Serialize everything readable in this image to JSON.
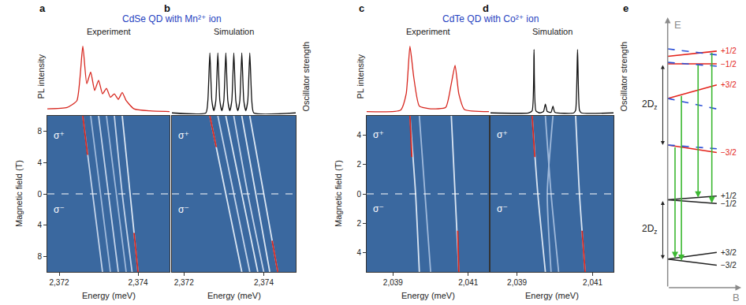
{
  "headings": [
    {
      "text": "CdSe QD with Mn²⁺ ion",
      "panels": [
        "a",
        "b"
      ]
    },
    {
      "text": "CdTe QD with Co²⁺ ion",
      "panels": [
        "c",
        "d"
      ]
    }
  ],
  "chart_data": [
    {
      "panel": "a",
      "type": "line",
      "title": "Experiment",
      "spectrum": {
        "ylabel": "PL intensity",
        "color": "#d7261e",
        "tick_labels": false,
        "xlim": [
          2371.7,
          2374.8
        ],
        "ylim": [
          0,
          1.1
        ],
        "x": [
          2371.7,
          2372.2,
          2372.45,
          2372.6,
          2372.7,
          2372.8,
          2372.9,
          2373.0,
          2373.1,
          2373.2,
          2373.3,
          2373.4,
          2373.5,
          2373.6,
          2373.7,
          2373.9,
          2374.3,
          2374.8
        ],
        "values": [
          0.08,
          0.1,
          0.2,
          1.0,
          0.45,
          0.62,
          0.35,
          0.5,
          0.3,
          0.38,
          0.25,
          0.3,
          0.22,
          0.32,
          0.2,
          0.08,
          0.05,
          0.04
        ]
      },
      "map": {
        "xlabel": "Energy (meV)",
        "ylabel": "Magnetic field (T)",
        "xlim": [
          2371.7,
          2374.8
        ],
        "xticks": [
          {
            "value": 2372,
            "label": "2,372"
          },
          {
            "value": 2374,
            "label": "2,374"
          }
        ],
        "ylim": [
          -10,
          10
        ],
        "yticks": [
          {
            "value": -8,
            "label": "8"
          },
          {
            "value": -4,
            "label": "4"
          },
          0,
          4,
          8
        ],
        "hline": 0,
        "annotations": [
          {
            "text": "σ⁺",
            "y": 7.5
          },
          {
            "text": "σ⁻",
            "y": -2
          }
        ],
        "series": [
          {
            "color": "#c4d4ea",
            "x": [
              2372.6,
              2372.85,
              2373.1
            ],
            "y": [
              10,
              0,
              -10
            ]
          },
          {
            "color": "#9fb9db",
            "x": [
              2372.8,
              2373.05,
              2373.3
            ],
            "y": [
              10,
              0,
              -10
            ]
          },
          {
            "color": "#c4d4ea",
            "x": [
              2373.0,
              2373.25,
              2373.5
            ],
            "y": [
              10,
              0,
              -10
            ]
          },
          {
            "color": "#9fb9db",
            "x": [
              2373.2,
              2373.45,
              2373.7
            ],
            "y": [
              10,
              0,
              -10
            ]
          },
          {
            "color": "#c4d4ea",
            "x": [
              2373.4,
              2373.6,
              2373.85
            ],
            "y": [
              10,
              0,
              -10
            ]
          },
          {
            "color": "#dbe6f3",
            "x": [
              2373.6,
              2373.8,
              2374.0
            ],
            "y": [
              10,
              0,
              -10
            ]
          },
          {
            "color": "#d7261e",
            "x": [
              2372.6,
              2372.72
            ],
            "y": [
              10,
              5
            ]
          },
          {
            "color": "#d7261e",
            "x": [
              2373.9,
              2374.0
            ],
            "y": [
              -5,
              -10
            ]
          }
        ]
      }
    },
    {
      "panel": "b",
      "type": "line",
      "title": "Simulation",
      "spectrum": {
        "ylabel": "Oscillator strength",
        "color": "#111111",
        "tick_labels": false,
        "xlim": [
          2371.7,
          2374.8
        ],
        "ylim": [
          0,
          1.1
        ],
        "x": [
          2371.7,
          2372.55,
          2372.6,
          2372.65,
          2372.7,
          2372.75,
          2372.8,
          2372.85,
          2372.9,
          2372.95,
          2373.0,
          2373.05,
          2373.1,
          2373.15,
          2373.2,
          2373.25,
          2373.3,
          2373.35,
          2373.4,
          2373.45,
          2373.5,
          2373.55,
          2373.6,
          2373.65,
          2373.7,
          2373.75,
          2374.8
        ],
        "values": [
          0.02,
          0.02,
          0.2,
          0.9,
          0.2,
          0.05,
          0.2,
          0.9,
          0.2,
          0.05,
          0.2,
          0.9,
          0.2,
          0.05,
          0.2,
          0.9,
          0.2,
          0.05,
          0.2,
          0.9,
          0.2,
          0.05,
          0.2,
          0.9,
          0.2,
          0.02,
          0.02
        ]
      },
      "map": {
        "xlabel": "Energy (meV)",
        "tick_labels": "x",
        "xlim": [
          2371.7,
          2374.8
        ],
        "xticks": [
          {
            "value": 2372,
            "label": "2,372"
          },
          {
            "value": 2374,
            "label": "2,374"
          }
        ],
        "ylim": [
          -10,
          10
        ],
        "hline": 0,
        "annotations": [
          {
            "text": "σ⁺",
            "y": 7.5
          },
          {
            "text": "σ⁻",
            "y": -2
          }
        ],
        "series": [
          {
            "color": "#dbe6f3",
            "x": [
              2372.65,
              2373.05,
              2373.45
            ],
            "y": [
              10,
              0,
              -10
            ]
          },
          {
            "color": "#c4d4ea",
            "x": [
              2372.85,
              2373.25,
              2373.65
            ],
            "y": [
              10,
              0,
              -10
            ]
          },
          {
            "color": "#dbe6f3",
            "x": [
              2373.05,
              2373.45,
              2373.85
            ],
            "y": [
              10,
              0,
              -10
            ]
          },
          {
            "color": "#c4d4ea",
            "x": [
              2373.25,
              2373.6,
              2374.0
            ],
            "y": [
              10,
              0,
              -10
            ]
          },
          {
            "color": "#dbe6f3",
            "x": [
              2373.45,
              2373.8,
              2374.15
            ],
            "y": [
              10,
              0,
              -10
            ]
          },
          {
            "color": "#dbe6f3",
            "x": [
              2373.65,
              2374.0,
              2374.35
            ],
            "y": [
              10,
              0,
              -10
            ]
          },
          {
            "color": "#d7261e",
            "x": [
              2372.65,
              2372.81
            ],
            "y": [
              10,
              6
            ]
          },
          {
            "color": "#d7261e",
            "x": [
              2374.21,
              2374.35
            ],
            "y": [
              -6,
              -10
            ]
          }
        ]
      }
    },
    {
      "panel": "c",
      "type": "line",
      "title": "Experiment",
      "spectrum": {
        "ylabel": "PL intensity",
        "color": "#d7261e",
        "tick_labels": false,
        "xlim": [
          2038.3,
          2041.55
        ],
        "ylim": [
          0,
          1.1
        ],
        "x": [
          2038.3,
          2039.2,
          2039.35,
          2039.45,
          2039.55,
          2039.7,
          2040.0,
          2040.4,
          2040.55,
          2040.65,
          2040.75,
          2040.9,
          2041.55
        ],
        "values": [
          0.04,
          0.06,
          0.3,
          1.0,
          0.55,
          0.12,
          0.08,
          0.1,
          0.45,
          0.72,
          0.3,
          0.07,
          0.04
        ]
      },
      "map": {
        "xlabel": "Energy (meV)",
        "ylabel": "Magnetic field (T)",
        "xlim": [
          2038.3,
          2041.55
        ],
        "xticks": [
          {
            "value": 2039,
            "label": "2,039"
          },
          {
            "value": 2041,
            "label": "2,041"
          }
        ],
        "ylim": [
          -5.3,
          5.3
        ],
        "yticks": [
          {
            "value": -4,
            "label": "4"
          },
          {
            "value": -2,
            "label": "2"
          },
          0,
          2,
          4
        ],
        "hline": 0,
        "annotations": [
          {
            "text": "σ⁺",
            "y": 4
          },
          {
            "text": "σ⁻",
            "y": -1
          }
        ],
        "series": [
          {
            "color": "#dbe6f3",
            "x": [
              2039.45,
              2039.6,
              2039.7
            ],
            "y": [
              5.3,
              0,
              -5.3
            ]
          },
          {
            "color": "#dbe6f3",
            "x": [
              2040.55,
              2040.65,
              2040.75
            ],
            "y": [
              5.3,
              0,
              -5.3
            ]
          },
          {
            "color": "#9fb9db",
            "x": [
              2039.7,
              2039.85,
              2040.0
            ],
            "y": [
              5.3,
              0,
              -5.3
            ]
          },
          {
            "color": "#d7261e",
            "x": [
              2039.45,
              2039.5
            ],
            "y": [
              5.3,
              2.5
            ]
          },
          {
            "color": "#d7261e",
            "x": [
              2040.72,
              2040.75
            ],
            "y": [
              -2.5,
              -5.3
            ]
          }
        ]
      }
    },
    {
      "panel": "d",
      "type": "line",
      "title": "Simulation",
      "spectrum": {
        "ylabel": "Oscillator strength",
        "color": "#111111",
        "tick_labels": false,
        "xlim": [
          2038.3,
          2041.55
        ],
        "ylim": [
          0,
          1.1
        ],
        "x": [
          2038.3,
          2039.3,
          2039.4,
          2039.45,
          2039.5,
          2039.6,
          2039.7,
          2039.75,
          2039.8,
          2039.9,
          2039.95,
          2040.0,
          2040.5,
          2040.55,
          2040.6,
          2040.65,
          2040.7,
          2041.55
        ],
        "values": [
          0.02,
          0.02,
          0.05,
          0.95,
          0.05,
          0.02,
          0.04,
          0.15,
          0.04,
          0.03,
          0.12,
          0.03,
          0.02,
          0.06,
          0.95,
          0.06,
          0.02,
          0.02
        ]
      },
      "map": {
        "xlabel": "Energy (meV)",
        "tick_labels": "x",
        "xlim": [
          2038.3,
          2041.55
        ],
        "xticks": [
          {
            "value": 2039,
            "label": "2,039"
          },
          {
            "value": 2041,
            "label": "2,041"
          }
        ],
        "ylim": [
          -5.3,
          5.3
        ],
        "hline": 0,
        "annotations": [
          {
            "text": "σ⁺",
            "y": 4
          },
          {
            "text": "σ⁻",
            "y": -1
          }
        ],
        "series": [
          {
            "color": "#dbe6f3",
            "x": [
              2039.4,
              2039.55,
              2039.75
            ],
            "y": [
              5.3,
              0,
              -5.3
            ]
          },
          {
            "color": "#dbe6f3",
            "x": [
              2040.55,
              2040.65,
              2040.8
            ],
            "y": [
              5.3,
              0,
              -5.3
            ]
          },
          {
            "color": "#9fb9db",
            "x": [
              2039.75,
              2039.9,
              2040.1
            ],
            "y": [
              5.3,
              0,
              -5.3
            ]
          },
          {
            "color": "#9fb9db",
            "x": [
              2039.95,
              2039.8,
              2039.9
            ],
            "y": [
              5.3,
              0,
              -5.3
            ]
          },
          {
            "color": "#d7261e",
            "x": [
              2039.4,
              2039.47
            ],
            "y": [
              5.3,
              2.5
            ]
          },
          {
            "color": "#d7261e",
            "x": [
              2040.72,
              2040.8
            ],
            "y": [
              -2.5,
              -5.3
            ]
          }
        ]
      }
    },
    {
      "panel": "e",
      "type": "line",
      "tick_labels": false,
      "xlim": [
        -0.75,
        1.5
      ],
      "ylim": [
        0,
        36
      ],
      "origin": [
        0,
        0
      ],
      "x_title": "B",
      "y_title": "E",
      "series": [
        {
          "color": "#e3231b",
          "line_style": "solid",
          "x": [
            0,
            1
          ],
          "y": [
            30.8,
            31.5
          ],
          "label": "+1/2"
        },
        {
          "color": "#e3231b",
          "line_style": "solid",
          "x": [
            0,
            1
          ],
          "y": [
            29.8,
            29.8
          ],
          "label": "−1/2"
        },
        {
          "color": "#e3231b",
          "line_style": "solid",
          "x": [
            0,
            1
          ],
          "y": [
            25.2,
            27.0
          ],
          "label": "+3/2"
        },
        {
          "color": "#e3231b",
          "line_style": "solid",
          "x": [
            0,
            1
          ],
          "y": [
            19.0,
            18.0
          ],
          "label": "−3/2"
        },
        {
          "color": "#2b4fd6",
          "line_style": "dashed",
          "x": [
            0,
            1
          ],
          "y": [
            31.8,
            31.0
          ]
        },
        {
          "color": "#2b4fd6",
          "line_style": "dashed",
          "x": [
            0,
            1
          ],
          "y": [
            30.0,
            29.5
          ]
        },
        {
          "color": "#2b4fd6",
          "line_style": "dashed",
          "x": [
            0,
            1
          ],
          "y": [
            25.2,
            23.8
          ]
        },
        {
          "color": "#2b4fd6",
          "line_style": "dashed",
          "x": [
            0,
            1
          ],
          "y": [
            19.0,
            18.5
          ]
        },
        {
          "color": "#222222",
          "line_style": "solid",
          "x": [
            0,
            1
          ],
          "y": [
            11.7,
            12.2
          ],
          "label": "+1/2"
        },
        {
          "color": "#222222",
          "line_style": "solid",
          "x": [
            0,
            1
          ],
          "y": [
            11.7,
            11.2
          ],
          "label": "−1/2"
        },
        {
          "color": "#222222",
          "line_style": "solid",
          "x": [
            0,
            1
          ],
          "y": [
            3.8,
            4.7
          ],
          "label": "+3/2"
        },
        {
          "color": "#222222",
          "line_style": "solid",
          "x": [
            0,
            1
          ],
          "y": [
            3.8,
            3.0
          ],
          "label": "−3/2"
        }
      ],
      "transitions": [
        {
          "x": 0.15,
          "from": 18.85,
          "to": 3.94,
          "color": "#3cb832"
        },
        {
          "x": 0.28,
          "from": 25.7,
          "to": 3.58,
          "color": "#3cb832"
        },
        {
          "x": 0.62,
          "from": 29.8,
          "to": 12.0,
          "color": "#3cb832"
        },
        {
          "x": 0.9,
          "from": 31.43,
          "to": 11.25,
          "color": "#3cb832"
        }
      ],
      "splittings": [
        {
          "x": -0.1,
          "from": 29.8,
          "to": 19.0,
          "label": {
            "main": "2D",
            "sub": "z"
          }
        },
        {
          "x": -0.1,
          "from": 11.7,
          "to": 3.8,
          "label": {
            "main": "2D",
            "sub": "z"
          }
        }
      ]
    }
  ]
}
